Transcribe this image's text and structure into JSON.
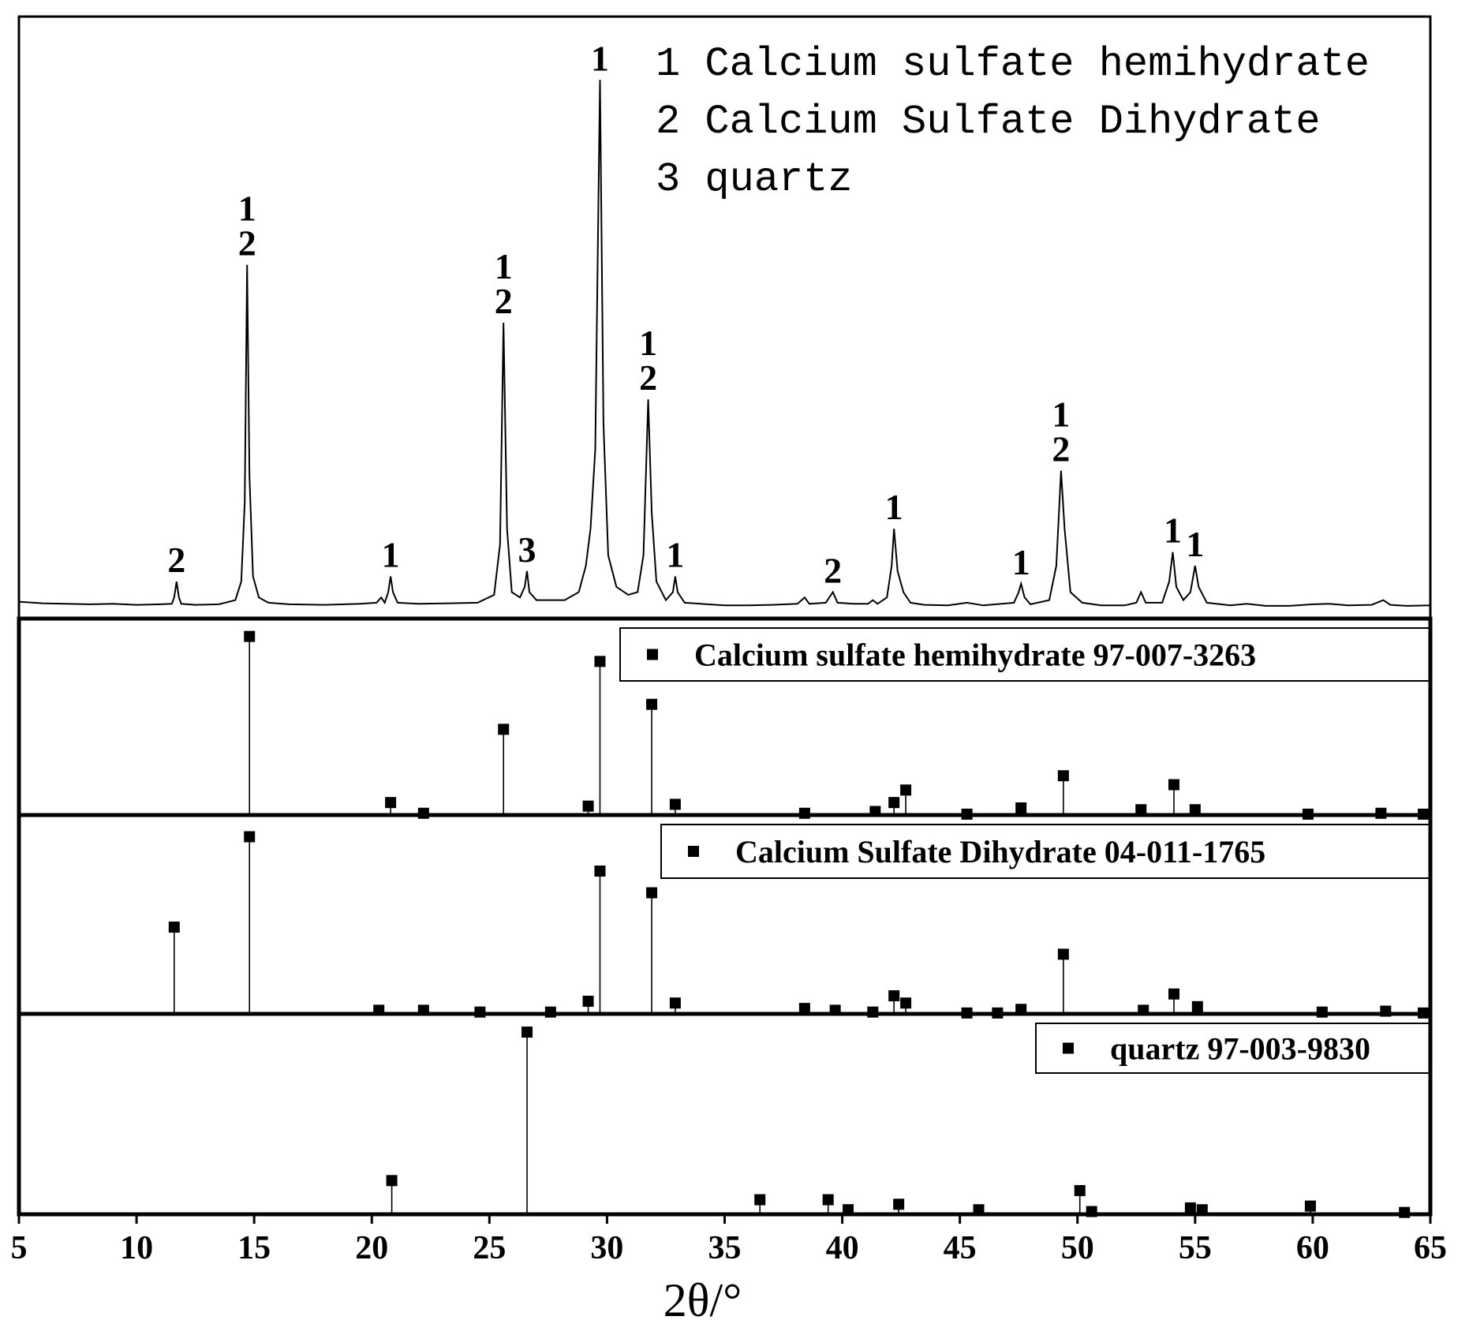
{
  "chart_data": [
    {
      "type": "line",
      "color": "#000000",
      "key": [
        "1 Calcium sulfate hemihydrate",
        "2 Calcium Sulfate Dihydrate",
        "3 quartz"
      ],
      "x": [
        5,
        6,
        7,
        8,
        9,
        10,
        11,
        11.5,
        11.6,
        11.7,
        11.8,
        11.9,
        12.5,
        13.5,
        14.2,
        14.45,
        14.6,
        14.7,
        14.8,
        14.95,
        15.2,
        15.6,
        16.5,
        18,
        19.5,
        20.2,
        20.4,
        20.55,
        20.7,
        20.8,
        20.9,
        21.1,
        22,
        23.3,
        24.5,
        25.2,
        25.45,
        25.6,
        25.75,
        25.95,
        26.3,
        26.5,
        26.6,
        26.7,
        27,
        27.6,
        28.2,
        28.8,
        29.1,
        29.3,
        29.5,
        29.7,
        29.85,
        30.05,
        30.4,
        30.9,
        31.3,
        31.55,
        31.75,
        31.9,
        32.1,
        32.5,
        32.8,
        32.9,
        33,
        33.3,
        34,
        35,
        36,
        37,
        38.1,
        38.4,
        38.6,
        39.3,
        39.6,
        39.8,
        40.5,
        41.1,
        41.3,
        41.5,
        41.9,
        42.1,
        42.2,
        42.35,
        42.6,
        42.9,
        43.5,
        44.5,
        45.3,
        46,
        47.3,
        47.5,
        47.6,
        47.75,
        48,
        48.8,
        49.1,
        49.3,
        49.45,
        49.7,
        50.2,
        51,
        52,
        52.5,
        52.7,
        52.9,
        53.6,
        53.9,
        54.05,
        54.2,
        54.5,
        54.8,
        55,
        55.15,
        55.5,
        56.5,
        57.2,
        58,
        59,
        60,
        60.7,
        61.5,
        62.5,
        63,
        63.3,
        64,
        65
      ],
      "values": [
        1.2,
        0.9,
        0.8,
        0.7,
        0.8,
        0.6,
        0.7,
        0.8,
        2,
        5,
        2,
        0.8,
        0.6,
        0.7,
        1.5,
        5,
        20,
        65,
        25,
        6,
        2,
        1,
        0.7,
        0.6,
        0.8,
        1,
        2,
        1,
        3,
        6,
        3,
        1,
        0.8,
        0.9,
        1,
        2.5,
        12,
        54,
        15,
        3,
        2,
        4,
        7,
        3,
        1.5,
        1.5,
        1.5,
        3,
        8,
        15,
        30,
        100,
        35,
        10,
        4,
        2.5,
        3,
        10,
        39.5,
        18,
        5,
        1.5,
        3,
        6,
        3,
        1,
        0.8,
        0.5,
        0.5,
        0.6,
        0.8,
        2,
        0.8,
        1,
        3,
        1,
        0.8,
        0.8,
        1.5,
        0.8,
        2,
        8,
        15,
        7,
        3,
        1,
        0.6,
        0.5,
        1,
        0.5,
        1,
        3,
        4.6,
        2,
        0.7,
        1.5,
        8,
        26,
        15,
        3,
        1,
        0.5,
        0.5,
        1,
        3,
        1,
        1,
        5,
        10.6,
        4,
        1.5,
        3,
        8,
        4,
        1,
        0.5,
        0.8,
        0.4,
        0.4,
        0.7,
        0.8,
        0.5,
        0.6,
        1.5,
        0.6,
        0.4,
        0.5
      ],
      "ylim": [
        -2,
        112
      ],
      "peak_labels": [
        {
          "x": 11.7,
          "text": [
            "2"
          ]
        },
        {
          "x": 14.7,
          "text": [
            "1",
            "2"
          ]
        },
        {
          "x": 20.8,
          "text": [
            "1"
          ]
        },
        {
          "x": 25.6,
          "text": [
            "1",
            "2"
          ]
        },
        {
          "x": 26.6,
          "text": [
            "3"
          ]
        },
        {
          "x": 29.7,
          "text": [
            "1"
          ]
        },
        {
          "x": 31.75,
          "text": [
            "1",
            "2"
          ]
        },
        {
          "x": 32.9,
          "text": [
            "1"
          ]
        },
        {
          "x": 39.6,
          "text": [
            "2"
          ]
        },
        {
          "x": 42.2,
          "text": [
            "1"
          ]
        },
        {
          "x": 47.6,
          "text": [
            "1"
          ]
        },
        {
          "x": 49.3,
          "text": [
            "1",
            "2"
          ]
        },
        {
          "x": 54.05,
          "text": [
            "1"
          ]
        },
        {
          "x": 55,
          "text": [
            "1"
          ]
        }
      ]
    },
    {
      "type": "stem",
      "ylim": [
        0,
        110
      ],
      "series": [
        {
          "name": "Calcium sulfate hemihydrate 97-007-3263",
          "color": "#000000",
          "x": [
            14.8,
            20.8,
            22.2,
            25.6,
            29.2,
            29.7,
            31.9,
            32.9,
            38.4,
            41.4,
            42.2,
            42.7,
            45.3,
            47.6,
            49.4,
            52.7,
            54.1,
            55,
            59.8,
            62.9,
            64.7
          ],
          "values": [
            100,
            7,
            1,
            48,
            5,
            86,
            62,
            6,
            1,
            2,
            7,
            14,
            0.5,
            4,
            22,
            3,
            17,
            3,
            0.5,
            1,
            0.5
          ]
        }
      ]
    },
    {
      "type": "stem",
      "ylim": [
        0,
        110
      ],
      "series": [
        {
          "name": "Calcium Sulfate Dihydrate 04-011-1765",
          "color": "#000000",
          "x": [
            11.6,
            14.8,
            20.3,
            22.2,
            24.6,
            27.6,
            29.2,
            29.7,
            31.9,
            32.9,
            38.4,
            39.7,
            41.3,
            42.2,
            42.7,
            45.3,
            46.6,
            47.6,
            49.4,
            52.8,
            54.1,
            55.1,
            60.4,
            63.1,
            64.7
          ],
          "values": [
            48,
            98,
            2,
            2,
            1,
            1,
            7,
            79,
            67,
            6,
            3,
            2,
            1,
            10,
            6,
            0.5,
            0.5,
            2.5,
            33,
            2,
            11,
            4,
            1,
            1.5,
            0.5
          ]
        }
      ]
    },
    {
      "type": "stem",
      "ylim": [
        0,
        110
      ],
      "series": [
        {
          "name": "quartz 97-003-9830",
          "color": "#000000",
          "x": [
            20.85,
            26.6,
            36.5,
            39.4,
            40.25,
            42.4,
            45.8,
            50.1,
            50.6,
            54.8,
            55.3,
            59.9,
            63.9
          ],
          "values": [
            18.5,
            100,
            8,
            8,
            2.5,
            5.5,
            2.5,
            13,
            1.5,
            3.5,
            2.5,
            4.5,
            1
          ]
        }
      ],
      "xlim": [
        5,
        65
      ],
      "xticks": [
        5,
        10,
        15,
        20,
        25,
        30,
        35,
        40,
        45,
        50,
        55,
        60,
        65
      ],
      "xlabel": "2θ/°"
    }
  ]
}
